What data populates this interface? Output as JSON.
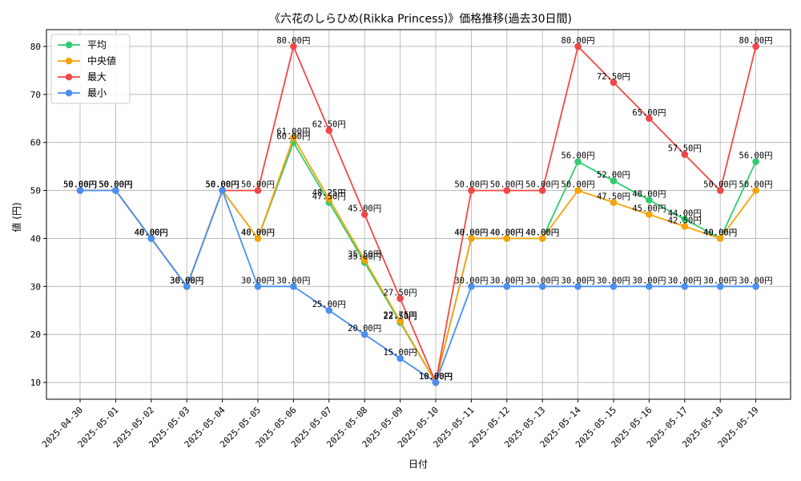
{
  "chart_data": {
    "type": "line",
    "title": "《六花のしらひめ(Rikka Princess)》価格推移(過去30日間)",
    "xlabel": "日付",
    "ylabel": "値 (円)",
    "ylim": [
      6.5,
      83.5
    ],
    "yticks": [
      10,
      20,
      30,
      40,
      50,
      60,
      70,
      80
    ],
    "grid": true,
    "legend_position": "top-left",
    "value_suffix": "円",
    "categories": [
      "2025-04-30",
      "2025-05-01",
      "2025-05-02",
      "2025-05-03",
      "2025-05-04",
      "2025-05-05",
      "2025-05-06",
      "2025-05-07",
      "2025-05-08",
      "2025-05-09",
      "2025-05-10",
      "2025-05-11",
      "2025-05-12",
      "2025-05-13",
      "2025-05-14",
      "2025-05-15",
      "2025-05-16",
      "2025-05-17",
      "2025-05-18",
      "2025-05-19"
    ],
    "series": [
      {
        "name": "平均",
        "color": "#2ecc71",
        "values": [
          50,
          50,
          40,
          30,
          50,
          40,
          60,
          47.5,
          35,
          22.5,
          10,
          40,
          40,
          40,
          56,
          52,
          48,
          44,
          40,
          56
        ]
      },
      {
        "name": "中央値",
        "color": "#f5a30a",
        "values": [
          50,
          50,
          40,
          30,
          50,
          40,
          61,
          48.25,
          35.5,
          22.75,
          10,
          40,
          40,
          40,
          50,
          47.5,
          45,
          42.5,
          40,
          50
        ]
      },
      {
        "name": "最大",
        "color": "#f04848",
        "values": [
          50,
          50,
          40,
          30,
          50,
          50,
          80,
          62.5,
          45,
          27.5,
          10,
          50,
          50,
          50,
          80,
          72.5,
          65,
          57.5,
          50,
          80
        ]
      },
      {
        "name": "最小",
        "color": "#4a90f0",
        "values": [
          50,
          50,
          40,
          30,
          50,
          30,
          30,
          25,
          20,
          15,
          10,
          30,
          30,
          30,
          30,
          30,
          30,
          30,
          30,
          30
        ]
      }
    ]
  }
}
